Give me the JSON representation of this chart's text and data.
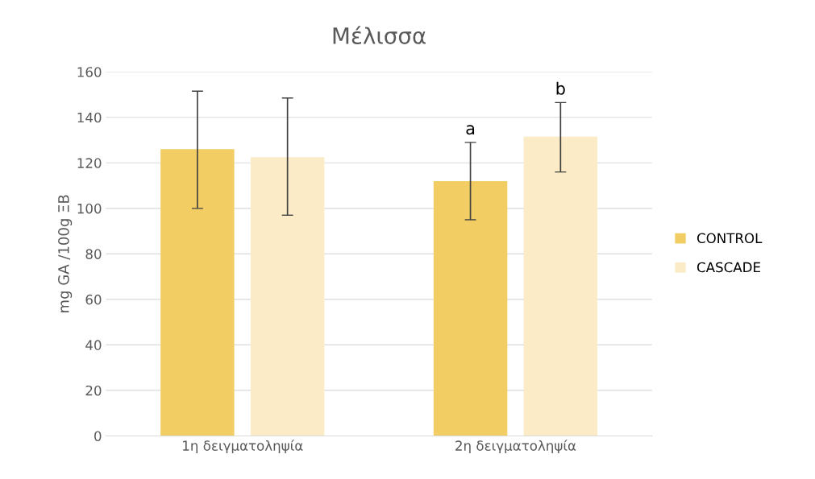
{
  "chart_data": {
    "type": "bar",
    "title": "Μέλισσα",
    "ylabel": "mg GA /100g ΞΒ",
    "categories": [
      "1η δειγματοληψία",
      "2η δειγματοληψία"
    ],
    "series": [
      {
        "name": "CONTROL",
        "color": "#f2cd63",
        "values": [
          126,
          112
        ],
        "errors": [
          [
            100,
            151.5
          ],
          [
            95,
            129
          ]
        ]
      },
      {
        "name": "CASCADE",
        "color": "#fbebc6",
        "values": [
          122.5,
          131.5
        ],
        "errors": [
          [
            97,
            148.5
          ],
          [
            116,
            146.5
          ]
        ]
      }
    ],
    "annotations": [
      "a",
      "b"
    ],
    "ylim": [
      0,
      160
    ],
    "yticks": [
      0,
      20,
      40,
      60,
      80,
      100,
      120,
      140,
      160
    ],
    "grid": "y",
    "legend": "right"
  }
}
